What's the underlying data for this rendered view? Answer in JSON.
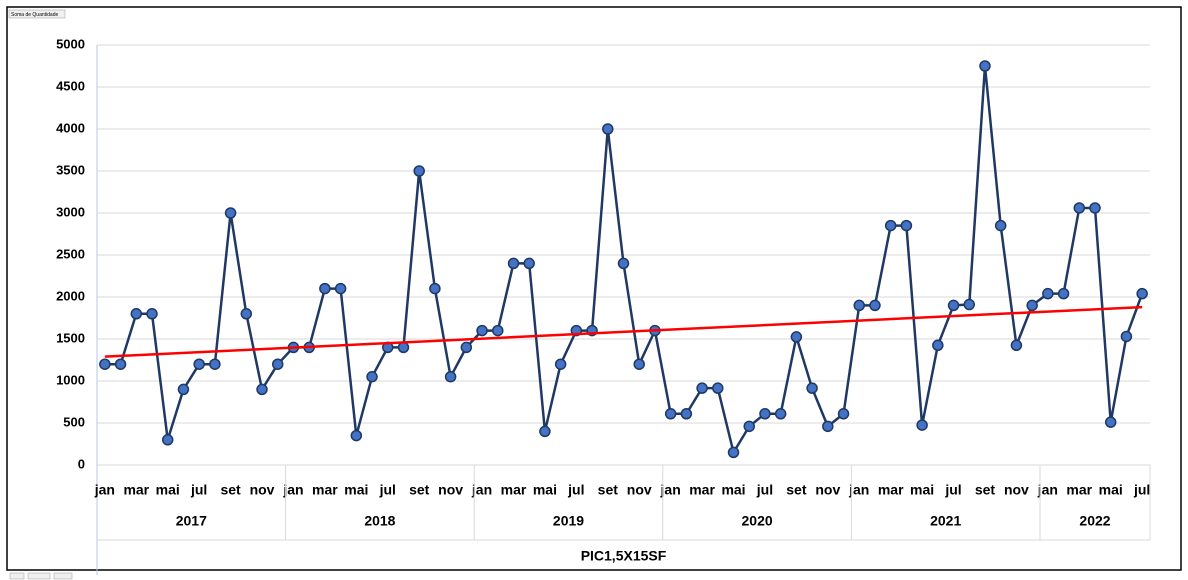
{
  "chart_data": {
    "type": "line",
    "field_button": "Soma de Quantidade",
    "x_label": "PIC1,5X15SF",
    "categories": [
      "jan",
      null,
      "mar",
      null,
      "mai",
      null,
      "jul",
      null,
      "set",
      null,
      "nov",
      null,
      "jan",
      null,
      "mar",
      null,
      "mai",
      null,
      "jul",
      null,
      "set",
      null,
      "nov",
      null,
      "jan",
      null,
      "mar",
      null,
      "mai",
      null,
      "jul",
      null,
      "set",
      null,
      "nov",
      null,
      "jan",
      null,
      "mar",
      null,
      "mai",
      null,
      "jul",
      null,
      "set",
      null,
      "nov",
      null,
      "jan",
      null,
      "mar",
      null,
      "mai",
      null,
      "jul",
      null,
      "set",
      null,
      "nov",
      null,
      "jan",
      null,
      "mar",
      null,
      "mai",
      null,
      "jul"
    ],
    "groups": [
      "2017",
      "2018",
      "2019",
      "2020",
      "2021",
      "2022"
    ],
    "series": [
      {
        "color": "#4472c4",
        "line_color": "#1f3864",
        "values": [
          1200,
          1200,
          1800,
          1800,
          300,
          900,
          1200,
          1200,
          3000,
          1800,
          900,
          1200,
          1400,
          1400,
          2100,
          2100,
          350,
          1050,
          1400,
          1400,
          3500,
          2100,
          1050,
          1400,
          1600,
          1600,
          2400,
          2400,
          400,
          1200,
          1600,
          1600,
          4000,
          2400,
          1200,
          1600,
          610,
          610,
          915,
          915,
          150,
          460,
          610,
          610,
          1525,
          915,
          460,
          610,
          1900,
          1900,
          2850,
          2850,
          475,
          1425,
          1900,
          1910,
          4750,
          2850,
          1425,
          1900,
          2040,
          2040,
          3060,
          3060,
          510,
          1530,
          2040
        ]
      }
    ],
    "trendline": {
      "color": "#ff0000",
      "values": [
        1290,
        1880
      ]
    },
    "ylim": [
      0,
      5000
    ],
    "yticks": [
      0,
      500,
      1000,
      1500,
      2000,
      2500,
      3000,
      3500,
      4000,
      4500,
      5000
    ],
    "grid": true
  }
}
